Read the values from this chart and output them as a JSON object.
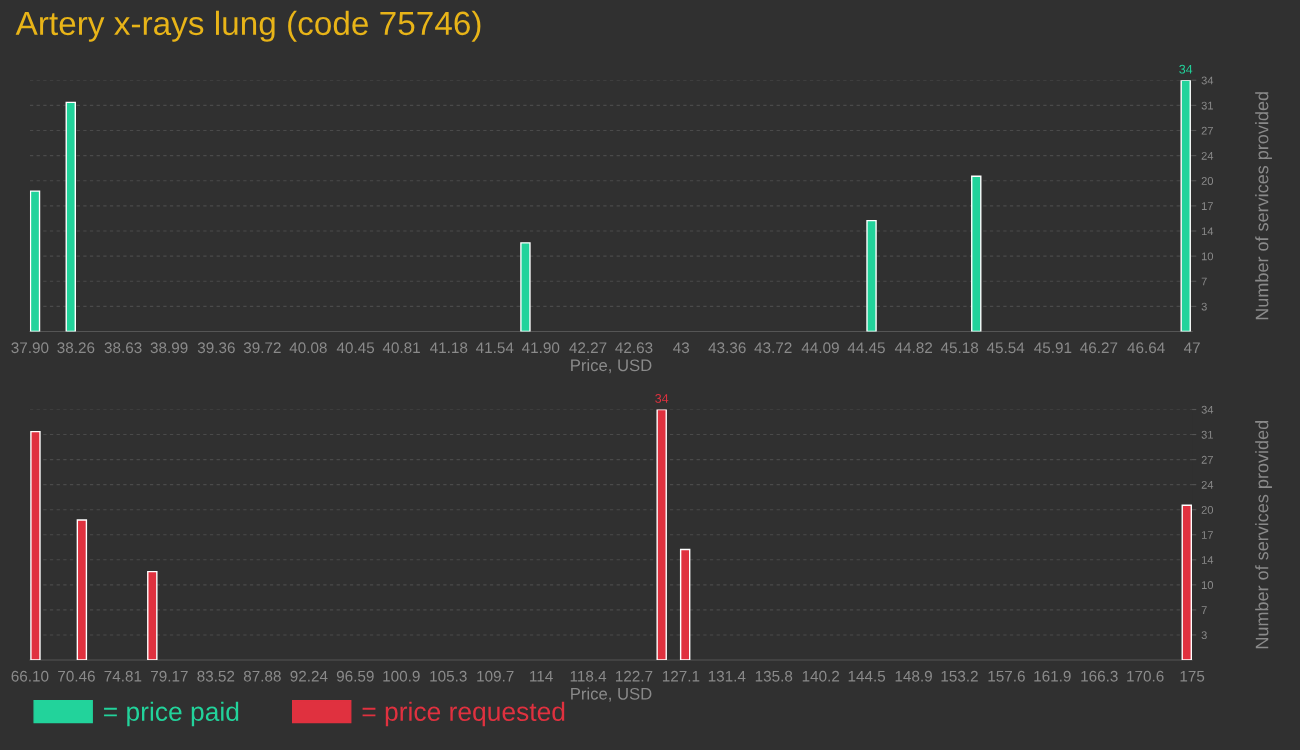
{
  "chart_data": [
    {
      "type": "bar",
      "title": "Artery x-rays lung (code 75746)",
      "xlabel": "Price, USD",
      "ylabel": "Number of services provided",
      "x": [
        37.94,
        38.22,
        41.78,
        44.49,
        45.31,
        46.95
      ],
      "series": [
        {
          "name": "= price paid",
          "color": "#22d39b",
          "values": [
            19,
            31,
            12,
            15,
            21,
            34
          ],
          "value_labels": [
            null,
            null,
            null,
            null,
            null,
            "34"
          ]
        }
      ],
      "xlim": [
        37.9,
        47
      ],
      "xticks": [
        {
          "value": 37.9,
          "label": "37.90"
        },
        38.26,
        38.63,
        38.99,
        39.36,
        39.72,
        40.08,
        40.45,
        40.81,
        41.18,
        41.54,
        {
          "value": 41.9,
          "label": "41.90"
        },
        42.27,
        42.63,
        43,
        43.36,
        43.72,
        44.09,
        44.45,
        44.82,
        45.18,
        45.54,
        45.91,
        46.27,
        46.64,
        47
      ],
      "ylim": [
        0,
        34
      ],
      "yticks": [
        {
          "value": 3.4,
          "label": "3"
        },
        {
          "value": 6.8,
          "label": "7"
        },
        {
          "value": 10.2,
          "label": "10"
        },
        {
          "value": 13.6,
          "label": "14"
        },
        17,
        {
          "value": 20.4,
          "label": "20"
        },
        {
          "value": 23.8,
          "label": "24"
        },
        {
          "value": 27.2,
          "label": "27"
        },
        {
          "value": 30.6,
          "label": "31"
        },
        34
      ],
      "grid": "y",
      "legend": "bottom left"
    },
    {
      "type": "bar",
      "xlabel": "Price, USD",
      "ylabel": "Number of services provided",
      "x": [
        66.62,
        70.97,
        77.57,
        125.3,
        127.5,
        174.5
      ],
      "series": [
        {
          "name": "= price requested",
          "color": "#e0313f",
          "values": [
            31,
            19,
            12,
            34,
            15,
            21
          ],
          "value_labels": [
            null,
            null,
            null,
            "34",
            null,
            null
          ]
        }
      ],
      "xlim": [
        66.1,
        175
      ],
      "xticks": [
        {
          "value": 66.1,
          "label": "66.10"
        },
        70.46,
        74.81,
        79.17,
        83.52,
        87.88,
        92.24,
        96.59,
        100.9,
        105.3,
        109.7,
        114,
        118.4,
        122.7,
        127.1,
        131.4,
        135.8,
        140.2,
        144.5,
        148.9,
        153.2,
        157.6,
        161.9,
        166.3,
        170.6,
        175
      ],
      "ylim": [
        0,
        34
      ],
      "yticks": [
        {
          "value": 3.4,
          "label": "3"
        },
        {
          "value": 6.8,
          "label": "7"
        },
        {
          "value": 10.2,
          "label": "10"
        },
        {
          "value": 13.6,
          "label": "14"
        },
        17,
        {
          "value": 20.4,
          "label": "20"
        },
        {
          "value": 23.8,
          "label": "24"
        },
        {
          "value": 27.2,
          "label": "27"
        },
        {
          "value": 30.6,
          "label": "31"
        },
        34
      ],
      "grid": "y",
      "legend": "bottom left"
    }
  ]
}
